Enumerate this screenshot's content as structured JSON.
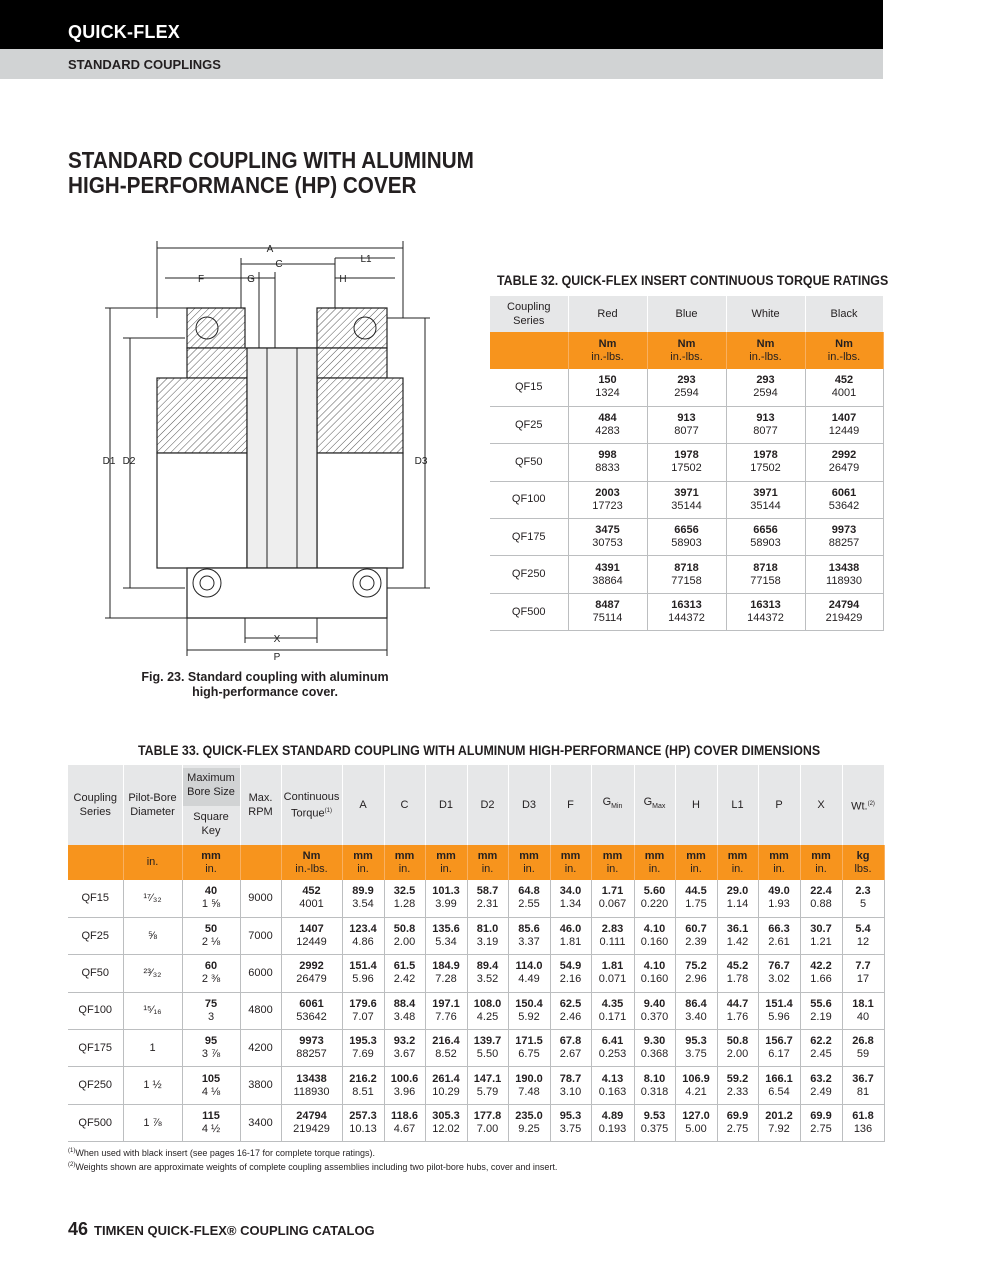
{
  "header": {
    "brand": "QUICK-FLEX",
    "section": "STANDARD COUPLINGS"
  },
  "page_title": [
    "STANDARD COUPLING WITH ALUMINUM",
    "HIGH-PERFORMANCE (HP) COVER"
  ],
  "figure": {
    "labels": {
      "A": "A",
      "C": "C",
      "L1": "L1",
      "F": "F",
      "G": "G",
      "H": "H",
      "D1": "D1",
      "D2": "D2",
      "D3": "D3",
      "X": "X",
      "P": "P"
    },
    "caption": [
      "Fig. 23. Standard coupling with aluminum",
      "high-performance cover."
    ]
  },
  "table32": {
    "title": "TABLE 32. QUICK-FLEX INSERT CONTINUOUS TORQUE RATINGS",
    "headers": [
      "Coupling Series",
      "Red",
      "Blue",
      "White",
      "Black"
    ],
    "units": [
      "",
      "Nm|in.-lbs.",
      "Nm|in.-lbs.",
      "Nm|in.-lbs.",
      "Nm|in.-lbs."
    ],
    "rows": [
      [
        "QF15",
        "150|1324",
        "293|2594",
        "293|2594",
        "452|4001"
      ],
      [
        "QF25",
        "484|4283",
        "913|8077",
        "913|8077",
        "1407|12449"
      ],
      [
        "QF50",
        "998|8833",
        "1978|17502",
        "1978|17502",
        "2992|26479"
      ],
      [
        "QF100",
        "2003|17723",
        "3971|35144",
        "3971|35144",
        "6061|53642"
      ],
      [
        "QF175",
        "3475|30753",
        "6656|58903",
        "6656|58903",
        "9973|88257"
      ],
      [
        "QF250",
        "4391|38864",
        "8718|77158",
        "8718|77158",
        "13438|118930"
      ],
      [
        "QF500",
        "8487|75114",
        "16313|144372",
        "16313|144372",
        "24794|219429"
      ]
    ]
  },
  "table33": {
    "title": "TABLE 33. QUICK-FLEX STANDARD COUPLING WITH ALUMINUM HIGH-PERFORMANCE (HP) COVER DIMENSIONS",
    "headers": [
      "Coupling Series",
      "Pilot-Bore Diameter",
      "Maximum Bore Size|Square Key",
      "Max. RPM",
      "Continuous Torque",
      "A",
      "C",
      "D1",
      "D2",
      "D3",
      "F",
      "G",
      "G",
      "H",
      "L1",
      "P",
      "X",
      "Wt."
    ],
    "header_sub": {
      "11": "Min",
      "12": "Max"
    },
    "header_sup": {
      "4": "(1)",
      "17": "(2)"
    },
    "units": [
      "",
      "in.",
      "mm|in.",
      "",
      "Nm|in.-lbs.",
      "mm|in.",
      "mm|in.",
      "mm|in.",
      "mm|in.",
      "mm|in.",
      "mm|in.",
      "mm|in.",
      "mm|in.",
      "mm|in.",
      "mm|in.",
      "mm|in.",
      "mm|in.",
      "kg|lbs."
    ],
    "rows": [
      [
        "QF15",
        "¹⁷⁄₃₂",
        "40|1 ⅝",
        "9000",
        "452|4001",
        "89.9|3.54",
        "32.5|1.28",
        "101.3|3.99",
        "58.7|2.31",
        "64.8|2.55",
        "34.0|1.34",
        "1.71|0.067",
        "5.60|0.220",
        "44.5|1.75",
        "29.0|1.14",
        "49.0|1.93",
        "22.4|0.88",
        "2.3|5"
      ],
      [
        "QF25",
        "⅝",
        "50|2 ⅛",
        "7000",
        "1407|12449",
        "123.4|4.86",
        "50.8|2.00",
        "135.6|5.34",
        "81.0|3.19",
        "85.6|3.37",
        "46.0|1.81",
        "2.83|0.111",
        "4.10|0.160",
        "60.7|2.39",
        "36.1|1.42",
        "66.3|2.61",
        "30.7|1.21",
        "5.4|12"
      ],
      [
        "QF50",
        "²³⁄₃₂",
        "60|2 ⅜",
        "6000",
        "2992|26479",
        "151.4|5.96",
        "61.5|2.42",
        "184.9|7.28",
        "89.4|3.52",
        "114.0|4.49",
        "54.9|2.16",
        "1.81|0.071",
        "4.10|0.160",
        "75.2|2.96",
        "45.2|1.78",
        "76.7|3.02",
        "42.2|1.66",
        "7.7|17"
      ],
      [
        "QF100",
        "¹⁵⁄₁₆",
        "75|3",
        "4800",
        "6061|53642",
        "179.6|7.07",
        "88.4|3.48",
        "197.1|7.76",
        "108.0|4.25",
        "150.4|5.92",
        "62.5|2.46",
        "4.35|0.171",
        "9.40|0.370",
        "86.4|3.40",
        "44.7|1.76",
        "151.4|5.96",
        "55.6|2.19",
        "18.1|40"
      ],
      [
        "QF175",
        "1",
        "95|3 ⅞",
        "4200",
        "9973|88257",
        "195.3|7.69",
        "93.2|3.67",
        "216.4|8.52",
        "139.7|5.50",
        "171.5|6.75",
        "67.8|2.67",
        "6.41|0.253",
        "9.30|0.368",
        "95.3|3.75",
        "50.8|2.00",
        "156.7|6.17",
        "62.2|2.45",
        "26.8|59"
      ],
      [
        "QF250",
        "1 ½",
        "105|4 ⅛",
        "3800",
        "13438|118930",
        "216.2|8.51",
        "100.6|3.96",
        "261.4|10.29",
        "147.1|5.79",
        "190.0|7.48",
        "78.7|3.10",
        "4.13|0.163",
        "8.10|0.318",
        "106.9|4.21",
        "59.2|2.33",
        "166.1|6.54",
        "63.2|2.49",
        "36.7|81"
      ],
      [
        "QF500",
        "1 ⅞",
        "115|4 ½",
        "3400",
        "24794|219429",
        "257.3|10.13",
        "118.6|4.67",
        "305.3|12.02",
        "177.8|7.00",
        "235.0|9.25",
        "95.3|3.75",
        "4.89|0.193",
        "9.53|0.375",
        "127.0|5.00",
        "69.9|2.75",
        "201.2|7.92",
        "69.9|2.75",
        "61.8|136"
      ]
    ]
  },
  "footnotes": [
    {
      "mark": "(1)",
      "text": "When used with black insert (see pages 16-17 for complete torque ratings)."
    },
    {
      "mark": "(2)",
      "text": "Weights shown are approximate weights of complete coupling assemblies including two pilot-bore hubs, cover and insert."
    }
  ],
  "footer": {
    "page_number": "46",
    "catalog": "TIMKEN QUICK-FLEX® COUPLING CATALOG"
  },
  "colors": {
    "accent_orange": "#f7941d",
    "header_grey": "#e6e7e8",
    "topbar": "#000000",
    "subbar": "#d1d3d4"
  }
}
